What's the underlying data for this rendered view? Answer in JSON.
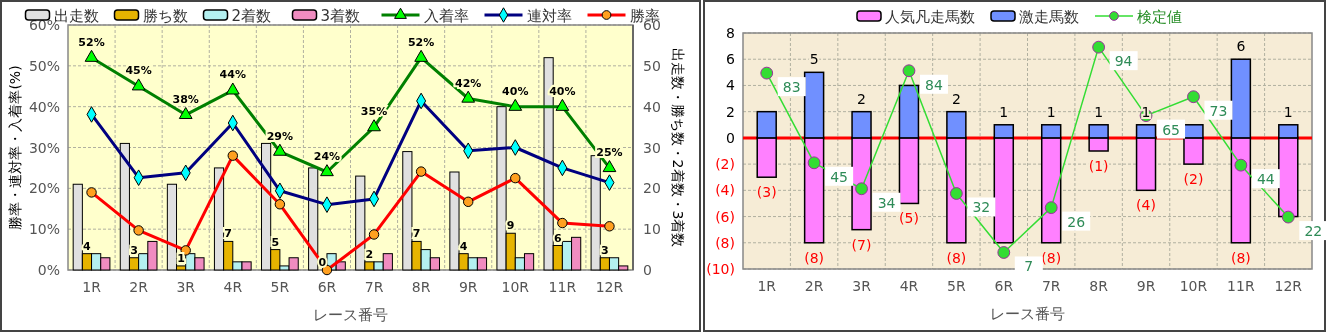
{
  "chart_data": [
    {
      "type": "bar",
      "xlabel": "レース番号",
      "ylabel": "勝率・連対率・入着率(%)",
      "y2label": "出走数・勝ち数・2着数・3着数",
      "categories": [
        "1R",
        "2R",
        "3R",
        "4R",
        "5R",
        "6R",
        "7R",
        "8R",
        "9R",
        "10R",
        "11R",
        "12R"
      ],
      "ylim": [
        0,
        60
      ],
      "yticks": [
        {
          "value": 0,
          "label": "0%"
        },
        {
          "value": 10,
          "label": "10%"
        },
        {
          "value": 20,
          "label": "20%"
        },
        {
          "value": 30,
          "label": "30%"
        },
        {
          "value": 40,
          "label": "40%"
        },
        {
          "value": 50,
          "label": "50%"
        },
        {
          "value": 60,
          "label": "60%"
        }
      ],
      "y2lim": [
        0,
        60
      ],
      "y2ticks": [
        0,
        10,
        20,
        30,
        40,
        50,
        60
      ],
      "grid": true,
      "legend": "top",
      "series": [
        {
          "name": "出走数",
          "type": "bar",
          "axis": "y2",
          "color": "#e0e0e0",
          "values": [
            21,
            31,
            21,
            25,
            31,
            25,
            23,
            29,
            24,
            40,
            52,
            28
          ]
        },
        {
          "name": "勝ち数",
          "type": "bar",
          "axis": "y2",
          "color": "#e6b400",
          "values": [
            4,
            3,
            1,
            7,
            5,
            0,
            2,
            7,
            4,
            9,
            6,
            3
          ],
          "value_labels": [
            "4",
            "3",
            "1",
            "7",
            "5",
            "0",
            "2",
            "7",
            "4",
            "9",
            "6",
            "3"
          ]
        },
        {
          "name": "2着数",
          "type": "bar",
          "axis": "y2",
          "color": "#b4f0f0",
          "values": [
            4,
            4,
            4,
            2,
            1,
            4,
            2,
            5,
            3,
            3,
            7,
            3
          ]
        },
        {
          "name": "3着数",
          "type": "bar",
          "axis": "y2",
          "color": "#f08cc0",
          "values": [
            3,
            7,
            3,
            2,
            3,
            2,
            4,
            3,
            3,
            4,
            8,
            1
          ]
        },
        {
          "name": "入着率",
          "type": "line",
          "marker": "triangle",
          "color": "#008000",
          "values": [
            52,
            45,
            38,
            44,
            29,
            24,
            35,
            52,
            42,
            40,
            40,
            25
          ],
          "value_labels": [
            "52%",
            "45%",
            "38%",
            "44%",
            "29%",
            "24%",
            "35%",
            "52%",
            "42%",
            "40%",
            "40%",
            "25%"
          ]
        },
        {
          "name": "連対率",
          "type": "line",
          "marker": "diamond",
          "color": "#000080",
          "values": [
            38.1,
            22.6,
            23.8,
            36,
            19.4,
            16,
            17.4,
            41.4,
            29.2,
            30,
            25,
            21.4
          ]
        },
        {
          "name": "勝率",
          "type": "line",
          "marker": "circle",
          "color": "#ff0000",
          "values": [
            19,
            9.7,
            4.8,
            28,
            16.1,
            0,
            8.7,
            24.1,
            16.7,
            22.5,
            11.5,
            10.7
          ]
        }
      ]
    },
    {
      "type": "bar",
      "stacked": true,
      "xlabel": "レース番号",
      "categories": [
        "1R",
        "2R",
        "3R",
        "4R",
        "5R",
        "6R",
        "7R",
        "8R",
        "9R",
        "10R",
        "11R",
        "12R"
      ],
      "ylim": [
        -10,
        8
      ],
      "yticks": [
        {
          "value": -10,
          "label": "(10)"
        },
        {
          "value": -8,
          "label": "(8)"
        },
        {
          "value": -6,
          "label": "(6)"
        },
        {
          "value": -4,
          "label": "(4)"
        },
        {
          "value": -2,
          "label": "(2)"
        },
        0,
        2,
        4,
        6,
        8
      ],
      "y2lim": [
        0,
        100
      ],
      "grid": true,
      "legend": "top",
      "ref_lines": [
        {
          "axis": "y",
          "value": 0,
          "color": "#ff0000"
        }
      ],
      "series": [
        {
          "name": "人気凡走馬数",
          "type": "bar",
          "color": "#ff80ff",
          "values": [
            -3,
            -8,
            -7,
            -5,
            -8,
            -8,
            -8,
            -1,
            -4,
            -2,
            -8,
            -6
          ],
          "value_labels": [
            "(3)",
            "(8)",
            "(7)",
            "(5)",
            "(8)",
            null,
            "(8)",
            "(1)",
            "(4)",
            "(2)",
            "(8)",
            null
          ]
        },
        {
          "name": "激走馬数",
          "type": "bar",
          "color": "#7090ff",
          "values": [
            2,
            5,
            2,
            4,
            2,
            1,
            1,
            1,
            1,
            1,
            6,
            1
          ],
          "value_labels": [
            null,
            "5",
            "2",
            null,
            "2",
            "1",
            "1",
            "1",
            "1",
            null,
            "6",
            "1"
          ]
        },
        {
          "name": "検定値",
          "type": "line",
          "axis": "y2",
          "marker": "circle",
          "color": "#33dd33",
          "values": [
            83,
            45,
            34,
            84,
            32,
            7,
            26,
            94,
            65,
            73,
            44,
            22
          ],
          "value_labels": [
            "83",
            "45",
            "34",
            "84",
            "32",
            "7",
            "26",
            "94",
            "65",
            "73",
            "44",
            "22"
          ]
        }
      ]
    }
  ]
}
